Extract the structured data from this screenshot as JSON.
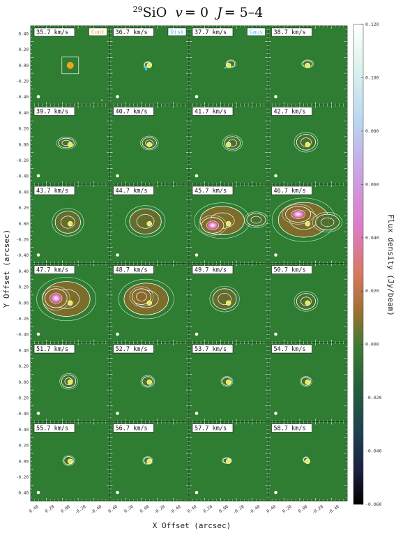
{
  "title": {
    "isotope": "29",
    "species": "SiO",
    "v_label": "v",
    "v_value": "= 0",
    "j_label": "J",
    "j_value": "= 5–4"
  },
  "chart_data": {
    "type": "heatmap",
    "layout": {
      "rows": 6,
      "cols": 4
    },
    "panels": [
      {
        "velocity": "35.7 km/s",
        "legend": "Cont",
        "emission": {
          "lobes": [],
          "cont_box": true
        }
      },
      {
        "velocity": "36.7 km/s",
        "legend": "Disk",
        "emission": {
          "lobes": [
            [
              0.02,
              0.01,
              0.04,
              0.03,
              0.3
            ]
          ],
          "disk_points": true
        }
      },
      {
        "velocity": "37.7 km/s",
        "legend": "Gaus",
        "emission": {
          "lobes": [
            [
              -0.03,
              0.02,
              0.05,
              0.04,
              0.3
            ]
          ],
          "gaus_point": true
        }
      },
      {
        "velocity": "38.7 km/s",
        "emission": {
          "lobes": [
            [
              0.0,
              0.02,
              0.06,
              0.04,
              0.3
            ]
          ]
        }
      },
      {
        "velocity": "39.7 km/s",
        "emission": {
          "lobes": [
            [
              0.05,
              0.02,
              0.1,
              0.06,
              0.3
            ]
          ]
        }
      },
      {
        "velocity": "40.7 km/s",
        "emission": {
          "lobes": [
            [
              0.0,
              0.02,
              0.09,
              0.07,
              0.35
            ]
          ]
        }
      },
      {
        "velocity": "41.7 km/s",
        "emission": {
          "lobes": [
            [
              -0.05,
              0.02,
              0.1,
              0.08,
              0.35
            ]
          ]
        }
      },
      {
        "velocity": "42.7 km/s",
        "emission": {
          "lobes": [
            [
              0.02,
              0.03,
              0.12,
              0.1,
              0.4
            ]
          ]
        }
      },
      {
        "velocity": "43.7 km/s",
        "emission": {
          "lobes": [
            [
              0.03,
              0.02,
              0.16,
              0.14,
              0.45
            ]
          ]
        }
      },
      {
        "velocity": "44.7 km/s",
        "emission": {
          "lobes": [
            [
              0.05,
              0.03,
              0.2,
              0.16,
              0.5
            ]
          ]
        }
      },
      {
        "velocity": "45.7 km/s",
        "emission": {
          "lobes": [
            [
              0.08,
              0.04,
              0.28,
              0.18,
              0.6
            ],
            [
              0.2,
              -0.02,
              0.14,
              0.1,
              0.9
            ],
            [
              -0.35,
              0.05,
              0.12,
              0.08,
              0.3
            ]
          ]
        }
      },
      {
        "velocity": "46.7 km/s",
        "emission": {
          "lobes": [
            [
              0.05,
              0.05,
              0.32,
              0.22,
              0.7
            ],
            [
              0.12,
              0.12,
              0.16,
              0.1,
              1.0
            ],
            [
              -0.25,
              0.02,
              0.15,
              0.1,
              0.4
            ]
          ]
        }
      },
      {
        "velocity": "47.7 km/s",
        "emission": {
          "lobes": [
            [
              0.05,
              0.05,
              0.3,
              0.22,
              0.7
            ],
            [
              0.18,
              0.06,
              0.14,
              0.12,
              1.0
            ]
          ]
        }
      },
      {
        "velocity": "48.7 km/s",
        "emission": {
          "lobes": [
            [
              0.04,
              0.05,
              0.28,
              0.2,
              0.6
            ],
            [
              0.1,
              0.08,
              0.12,
              0.1,
              0.75
            ]
          ]
        }
      },
      {
        "velocity": "49.7 km/s",
        "emission": {
          "lobes": [
            [
              0.05,
              0.05,
              0.15,
              0.13,
              0.45
            ]
          ]
        }
      },
      {
        "velocity": "50.7 km/s",
        "emission": {
          "lobes": [
            [
              0.02,
              0.02,
              0.12,
              0.1,
              0.4
            ]
          ]
        }
      },
      {
        "velocity": "51.7 km/s",
        "emission": {
          "lobes": [
            [
              0.02,
              0.01,
              0.09,
              0.08,
              0.35
            ]
          ]
        }
      },
      {
        "velocity": "52.7 km/s",
        "emission": {
          "lobes": [
            [
              0.02,
              0.01,
              0.07,
              0.06,
              0.3
            ]
          ]
        }
      },
      {
        "velocity": "53.7 km/s",
        "emission": {
          "lobes": [
            [
              0.02,
              0.01,
              0.06,
              0.05,
              0.3
            ]
          ]
        }
      },
      {
        "velocity": "54.7 km/s",
        "emission": {
          "lobes": [
            [
              0.02,
              0.01,
              0.06,
              0.05,
              0.3
            ]
          ]
        }
      },
      {
        "velocity": "55.7 km/s",
        "emission": {
          "lobes": [
            [
              0.02,
              0.01,
              0.06,
              0.05,
              0.3
            ]
          ]
        }
      },
      {
        "velocity": "56.7 km/s",
        "emission": {
          "lobes": [
            [
              0.02,
              0.01,
              0.05,
              0.04,
              0.3
            ]
          ]
        }
      },
      {
        "velocity": "57.7 km/s",
        "emission": {
          "lobes": [
            [
              0.02,
              0.01,
              0.05,
              0.03,
              0.3
            ]
          ]
        }
      },
      {
        "velocity": "58.7 km/s",
        "emission": {
          "lobes": [
            [
              0.02,
              0.02,
              0.03,
              0.03,
              0.3
            ]
          ]
        }
      }
    ],
    "y_ticks": [
      "0.40",
      "0.20",
      "0.00",
      "-0.20",
      "-0.40"
    ],
    "x_ticks": [
      "0.40",
      "0.20",
      "0.00",
      "-0.20",
      "-0.40"
    ],
    "xlabel": "X Offset (arcsec)",
    "ylabel": "Y Offset (arcsec)",
    "xlim": [
      0.5,
      -0.5
    ],
    "ylim": [
      -0.5,
      0.5
    ],
    "colorbar": {
      "label": "Flux density (Jy/beam)",
      "range": [
        -0.06,
        0.12
      ],
      "ticks": [
        "0.120",
        "0.100",
        "0.080",
        "0.060",
        "0.040",
        "0.020",
        "0.000",
        "-0.020",
        "-0.040",
        "-0.060"
      ]
    },
    "legend_colors": {
      "cont": "#f0a020",
      "disk": "#45c8f0",
      "gaus": "#45c8f0"
    },
    "background_color": "#2e7d32"
  }
}
